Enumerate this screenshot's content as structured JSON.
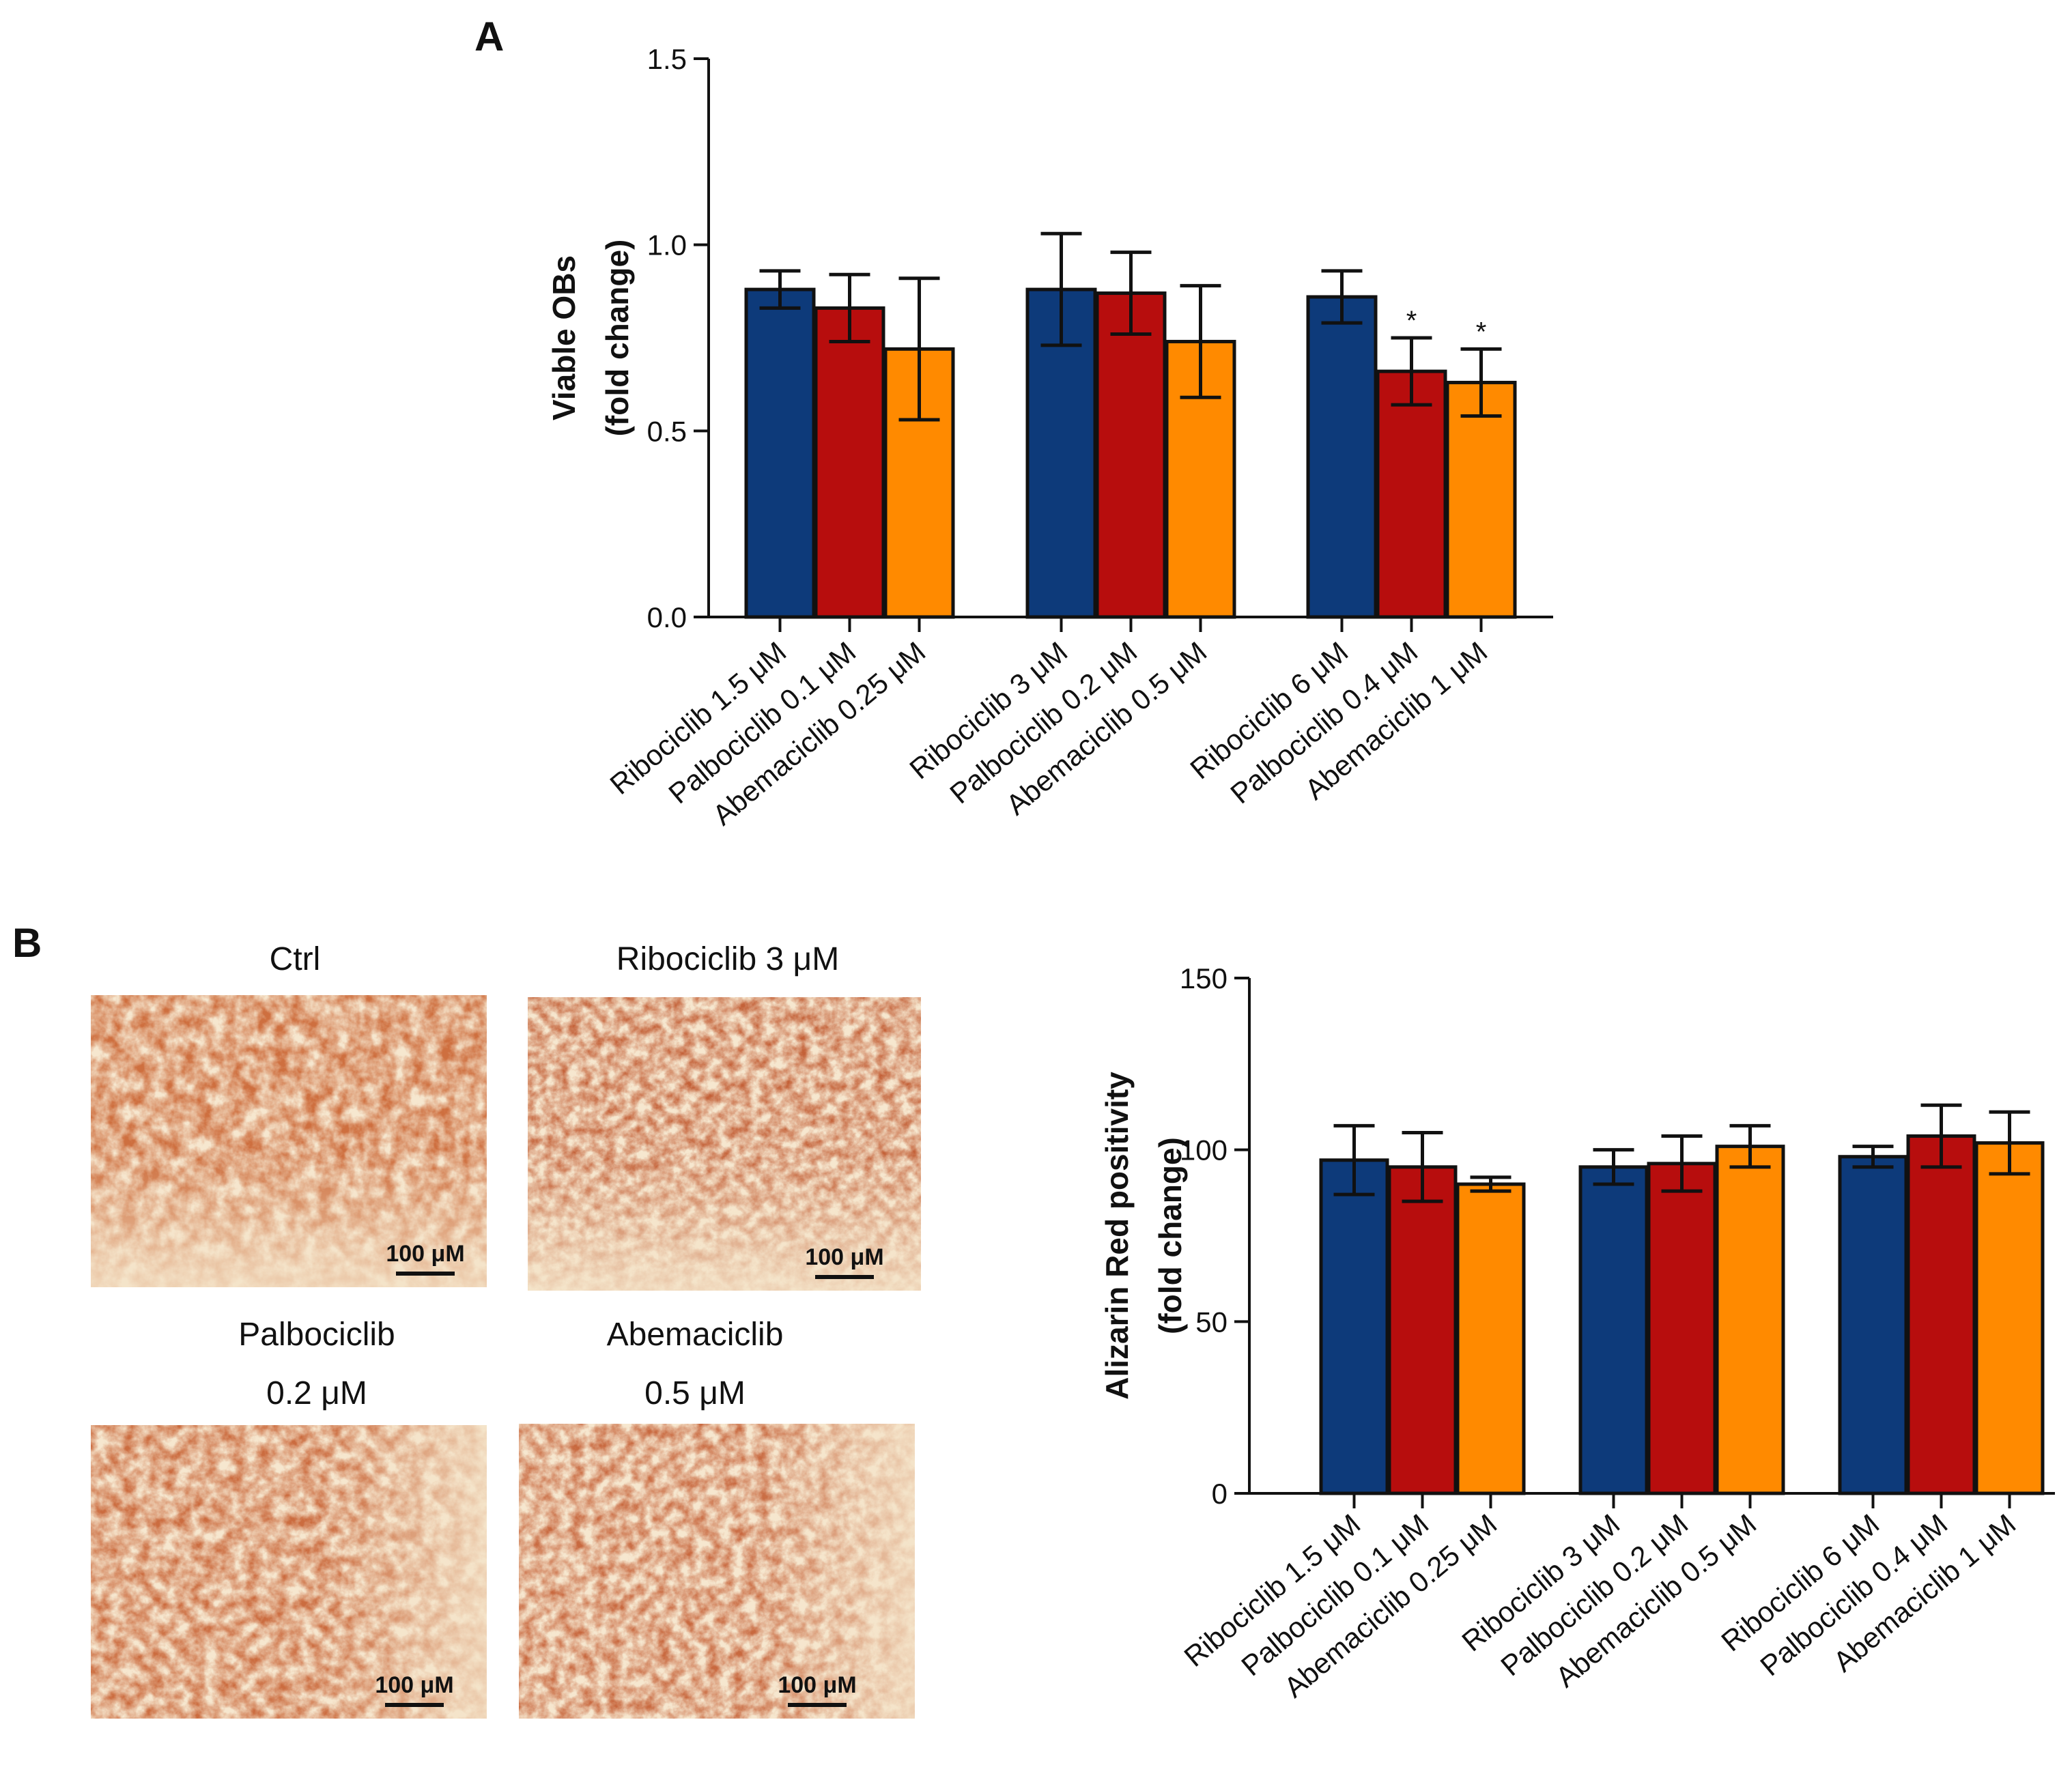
{
  "panels": {
    "a": "A",
    "b": "B"
  },
  "colors": {
    "ribociclib": "#0d3a7a",
    "palbociclib": "#b70d0d",
    "abemaciclib": "#ff8a00"
  },
  "micrographs": [
    {
      "caption_lines": [
        "Ctrl"
      ],
      "scale_label": "100 μM"
    },
    {
      "caption_lines": [
        "Ribociclib 3 μM"
      ],
      "scale_label": "100 μM"
    },
    {
      "caption_lines": [
        "Palbociclib",
        "0.2 μM"
      ],
      "scale_label": "100 μM"
    },
    {
      "caption_lines": [
        "Abemaciclib",
        "0.5  μM"
      ],
      "scale_label": "100 μM"
    }
  ],
  "chart_data": [
    {
      "type": "bar",
      "title": "",
      "ylabel_lines": [
        "Viable OBs",
        "(fold change)"
      ],
      "ylim": [
        0,
        1.5
      ],
      "yticks": [
        "0.0",
        "0.5",
        "1.0",
        "1.5"
      ],
      "grid": false,
      "categories": [
        "Ribociclib 1.5 μM",
        "Palbociclib 0.1 μM",
        "Abemaciclib 0.25 μM",
        "Ribociclib 3 μM",
        "Palbociclib 0.2 μM",
        "Abemaciclib 0.5 μM",
        "Ribociclib 6 μM",
        "Palbociclib 0.4 μM",
        "Abemaciclib 1 μM"
      ],
      "drug": [
        "ribociclib",
        "palbociclib",
        "abemaciclib",
        "ribociclib",
        "palbociclib",
        "abemaciclib",
        "ribociclib",
        "palbociclib",
        "abemaciclib"
      ],
      "group": [
        0,
        0,
        0,
        1,
        1,
        1,
        2,
        2,
        2
      ],
      "values": [
        0.88,
        0.83,
        0.72,
        0.88,
        0.87,
        0.74,
        0.86,
        0.66,
        0.63
      ],
      "error": [
        0.05,
        0.09,
        0.19,
        0.15,
        0.11,
        0.15,
        0.07,
        0.09,
        0.09
      ],
      "annotations": [
        "",
        "",
        "",
        "",
        "",
        "",
        "",
        "*",
        "*"
      ]
    },
    {
      "type": "bar",
      "title": "",
      "ylabel_lines": [
        "Alizarin Red positivity",
        "(fold change)"
      ],
      "ylim": [
        0,
        150
      ],
      "yticks": [
        "0",
        "50",
        "100",
        "150"
      ],
      "grid": false,
      "categories": [
        "Ribociclib 1.5 μM",
        "Palbociclib 0.1 μM",
        "Abemaciclib 0.25 μM",
        "Ribociclib 3 μM",
        "Palbociclib 0.2 μM",
        "Abemaciclib 0.5 μM",
        "Ribociclib 6 μM",
        "Palbociclib 0.4 μM",
        "Abemaciclib 1 μM"
      ],
      "drug": [
        "ribociclib",
        "palbociclib",
        "abemaciclib",
        "ribociclib",
        "palbociclib",
        "abemaciclib",
        "ribociclib",
        "palbociclib",
        "abemaciclib"
      ],
      "group": [
        0,
        0,
        0,
        1,
        1,
        1,
        2,
        2,
        2
      ],
      "values": [
        97,
        95,
        90,
        95,
        96,
        101,
        98,
        104,
        102
      ],
      "error": [
        10,
        10,
        2,
        5,
        8,
        6,
        3,
        9,
        9
      ],
      "annotations": [
        "",
        "",
        "",
        "",
        "",
        "",
        "",
        "",
        ""
      ]
    }
  ]
}
